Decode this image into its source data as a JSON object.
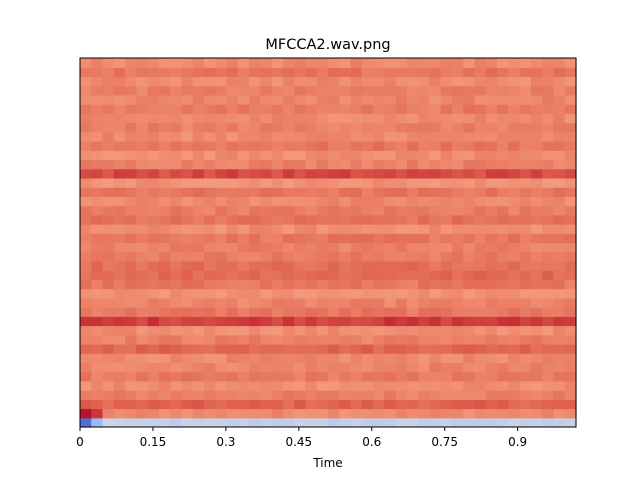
{
  "chart_data": {
    "type": "heatmap",
    "title": "MFCCA2.wav.png",
    "xlabel": "Time",
    "ylabel": "",
    "xlim": [
      0,
      1.02
    ],
    "x_ticks": [
      {
        "value": 0,
        "label": "0"
      },
      {
        "value": 0.15,
        "label": "0.15"
      },
      {
        "value": 0.3,
        "label": "0.3"
      },
      {
        "value": 0.45,
        "label": "0.45"
      },
      {
        "value": 0.6,
        "label": "0.6"
      },
      {
        "value": 0.75,
        "label": "0.75"
      },
      {
        "value": 0.9,
        "label": "0.9"
      }
    ],
    "y_ticks": [],
    "colormap": "coolwarm",
    "grid": false,
    "legend": "none",
    "n_rows": 40,
    "n_cols": 44,
    "row_levels": [
      0.42,
      0.78,
      0.86,
      0.8,
      0.77,
      0.81,
      0.79,
      0.78,
      0.86,
      0.8,
      0.77,
      0.92,
      0.82,
      0.79,
      0.76,
      0.82,
      0.85,
      0.84,
      0.81,
      0.8,
      0.82,
      0.77,
      0.83,
      0.81,
      0.78,
      0.82,
      0.76,
      0.9,
      0.8,
      0.77,
      0.82,
      0.78,
      0.8,
      0.78,
      0.81,
      0.79,
      0.8,
      0.78,
      0.82,
      0.78
    ],
    "special_cells": [
      {
        "row": 0,
        "col": 0,
        "level": 0.08
      },
      {
        "row": 0,
        "col": 1,
        "level": 0.3
      },
      {
        "row": 1,
        "col": 0,
        "level": 0.98
      },
      {
        "row": 1,
        "col": 1,
        "level": 0.93
      }
    ]
  }
}
